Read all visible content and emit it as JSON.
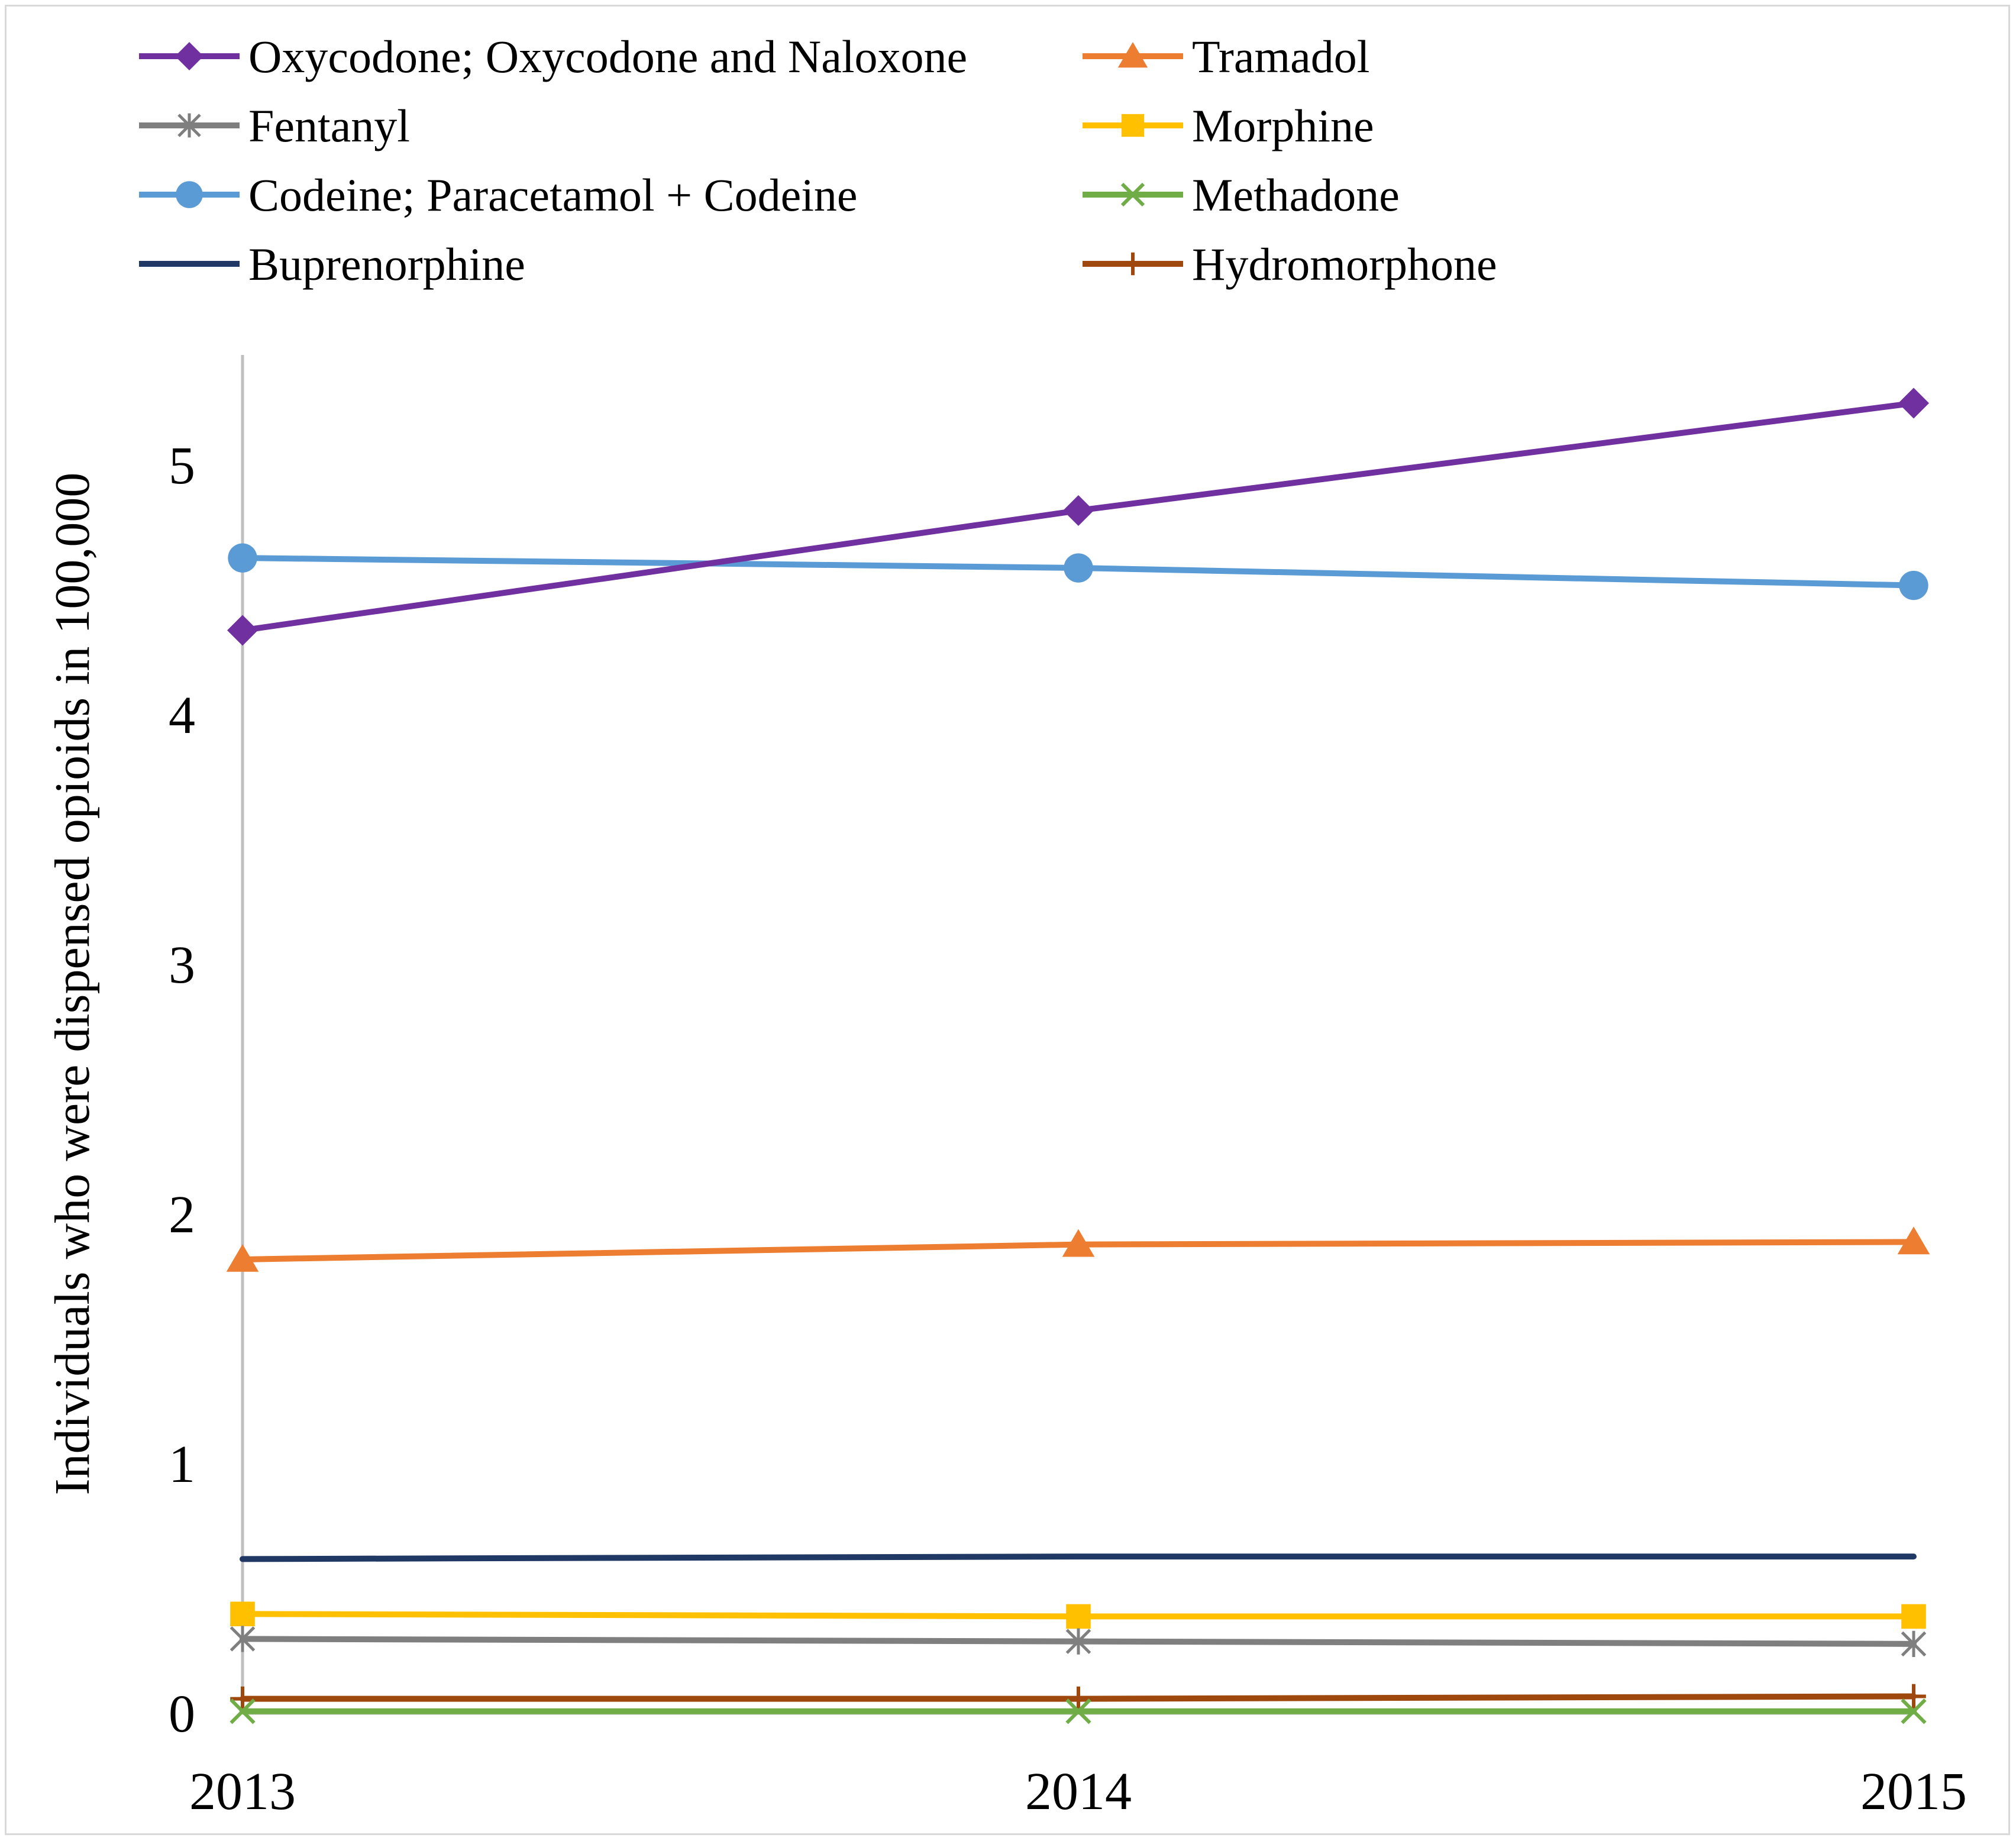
{
  "chart_data": {
    "type": "line",
    "title": "",
    "xlabel": "",
    "ylabel": "Individuals who were dispensed opioids in 100,000",
    "x": [
      "2013",
      "2014",
      "2015"
    ],
    "yticks": [
      "0",
      "1",
      "2",
      "3",
      "4",
      "5"
    ],
    "ylim": [
      0,
      5.5
    ],
    "grid": false,
    "legend_position": "top",
    "series": [
      {
        "name": "Oxycodone; Oxycodone and Naloxone",
        "values": [
          4.34,
          4.82,
          5.25
        ],
        "color": "#7030a0",
        "marker": "diamond"
      },
      {
        "name": "Tramadol",
        "values": [
          1.82,
          1.88,
          1.89
        ],
        "color": "#ed7d31",
        "marker": "triangle"
      },
      {
        "name": "Fentanyl",
        "values": [
          0.3,
          0.29,
          0.28
        ],
        "color": "#7f7f7f",
        "marker": "asterisk"
      },
      {
        "name": "Morphine",
        "values": [
          0.4,
          0.39,
          0.39
        ],
        "color": "#ffc000",
        "marker": "square"
      },
      {
        "name": "Codeine; Paracetamol + Codeine",
        "values": [
          4.63,
          4.59,
          4.52
        ],
        "color": "#5b9bd5",
        "marker": "circle"
      },
      {
        "name": "Methadone",
        "values": [
          0.01,
          0.01,
          0.01
        ],
        "color": "#70ad47",
        "marker": "x"
      },
      {
        "name": "Buprenorphine",
        "values": [
          0.62,
          0.63,
          0.63
        ],
        "color": "#203864",
        "marker": "none"
      },
      {
        "name": "Hydromorphone",
        "values": [
          0.06,
          0.06,
          0.07
        ],
        "color": "#9e480e",
        "marker": "plus"
      }
    ]
  }
}
